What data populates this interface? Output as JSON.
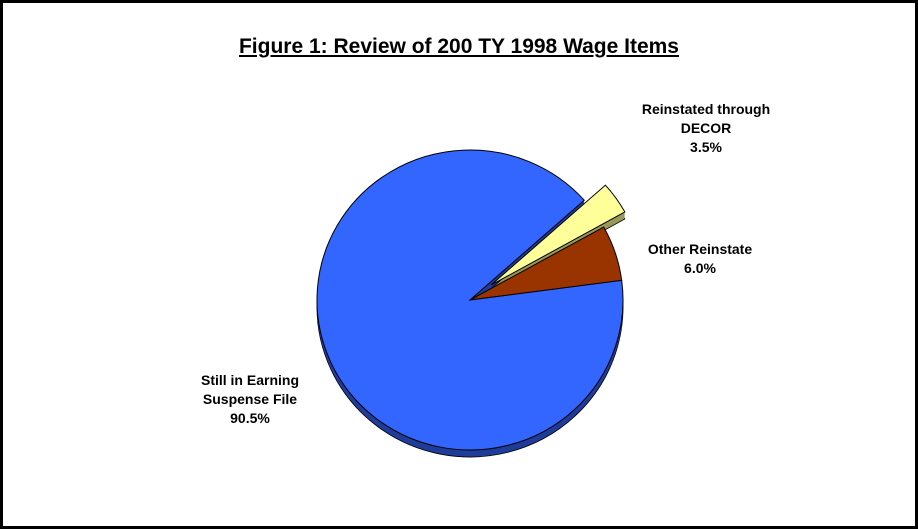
{
  "chart_data": {
    "type": "pie",
    "title": "Figure 1:  Review of 200 TY 1998 Wage Items",
    "categories": [
      "Other Reinstate",
      "Reinstated through DECOR",
      "Still in Earning Suspense File"
    ],
    "values": [
      6.0,
      3.5,
      90.5
    ],
    "value_labels": [
      "6.0%",
      "3.5%",
      "90.5%"
    ],
    "colors": [
      "#993300",
      "#ffff99",
      "#3366ff"
    ]
  }
}
